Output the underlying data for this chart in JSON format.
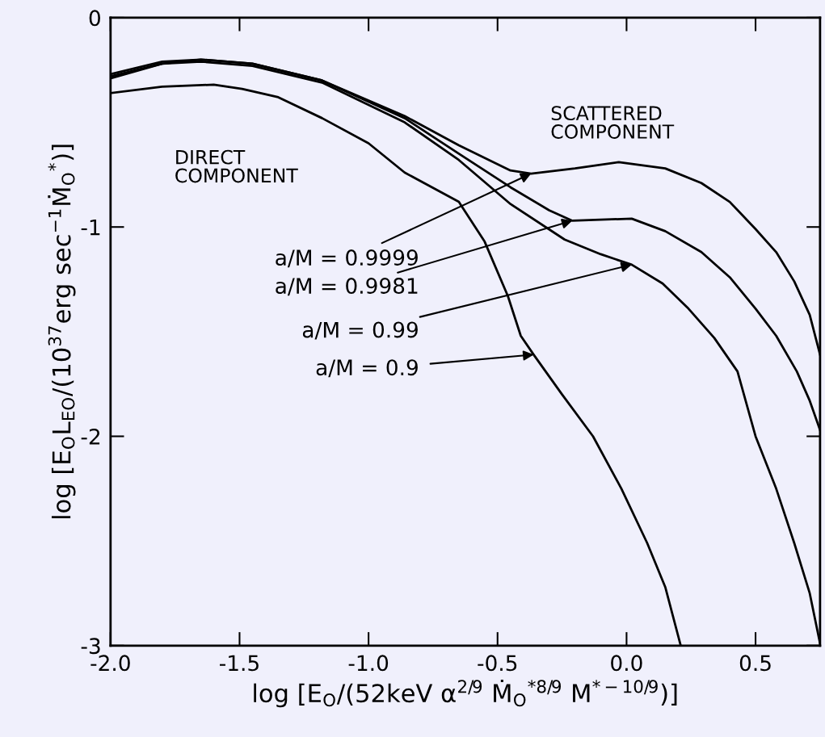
{
  "chart_data": {
    "type": "line",
    "xlabel": "log [E$_{O}$/(52keV α$^{2/9}$ Ṁ$_{O}$$^{*8/9}$ M$^{*−10/9}$)]",
    "ylabel": "log [E$_{O}$L$_{EO}$/(10$^{37}$erg sec$^{−1}$Ṁ$_{O}$$^{*}$)]",
    "xlim": [
      -2.0,
      0.75
    ],
    "ylim": [
      -3,
      0
    ],
    "xticks": [
      {
        "value": -2,
        "label": "-2.0"
      },
      -1.5,
      {
        "value": -1,
        "label": "-1.0"
      },
      -0.5,
      {
        "value": 0,
        "label": "0.0"
      },
      0.5
    ],
    "yticks": [
      0,
      -1,
      -2,
      -3
    ],
    "grid": false,
    "legend": false,
    "marker": "none",
    "line_style": "solid",
    "series": [
      {
        "color": "#000000",
        "x": [
          -2.0,
          -1.8,
          -1.65,
          -1.45,
          -1.18,
          -0.86,
          -0.65,
          -0.45,
          -0.37,
          -0.2,
          -0.03,
          0.15,
          0.29,
          0.4,
          0.5,
          0.58,
          0.65,
          0.71,
          0.75
        ],
        "values": [
          -0.27,
          -0.21,
          -0.2,
          -0.22,
          -0.3,
          -0.47,
          -0.61,
          -0.73,
          -0.745,
          -0.72,
          -0.69,
          -0.72,
          -0.79,
          -0.88,
          -1.01,
          -1.12,
          -1.26,
          -1.42,
          -1.61
        ]
      },
      {
        "color": "#000000",
        "x": [
          -2.0,
          -1.8,
          -1.65,
          -1.45,
          -1.18,
          -0.86,
          -0.65,
          -0.45,
          -0.3,
          -0.21,
          0.02,
          0.15,
          0.29,
          0.4,
          0.5,
          0.58,
          0.66,
          0.71,
          0.75
        ],
        "values": [
          -0.28,
          -0.22,
          -0.2,
          -0.22,
          -0.3,
          -0.48,
          -0.65,
          -0.81,
          -0.92,
          -0.97,
          -0.96,
          -1.02,
          -1.12,
          -1.24,
          -1.39,
          -1.52,
          -1.69,
          -1.83,
          -1.97
        ]
      },
      {
        "color": "#000000",
        "x": [
          -2.0,
          -1.8,
          -1.65,
          -1.45,
          -1.18,
          -0.86,
          -0.65,
          -0.45,
          -0.24,
          -0.1,
          0.02,
          0.14,
          0.24,
          0.34,
          0.43,
          0.5,
          0.58,
          0.65,
          0.71,
          0.75
        ],
        "values": [
          -0.29,
          -0.22,
          -0.21,
          -0.23,
          -0.31,
          -0.5,
          -0.68,
          -0.89,
          -1.06,
          -1.13,
          -1.18,
          -1.27,
          -1.39,
          -1.53,
          -1.69,
          -2.0,
          -2.25,
          -2.51,
          -2.75,
          -2.99
        ]
      },
      {
        "color": "#000000",
        "x": [
          -2.0,
          -1.8,
          -1.6,
          -1.49,
          -1.35,
          -1.18,
          -1.0,
          -0.86,
          -0.65,
          -0.55,
          -0.46,
          -0.41,
          -0.36,
          -0.25,
          -0.13,
          -0.02,
          0.08,
          0.15,
          0.21
        ],
        "values": [
          -0.36,
          -0.33,
          -0.32,
          -0.34,
          -0.38,
          -0.48,
          -0.6,
          -0.74,
          -0.88,
          -1.07,
          -1.33,
          -1.52,
          -1.61,
          -1.8,
          -2.0,
          -2.25,
          -2.51,
          -2.72,
          -3.0
        ]
      }
    ],
    "annotations": [
      {
        "text": "a/M = 0.9999",
        "x": -0.37,
        "y": -0.745
      },
      {
        "text": "a/M = 0.9981",
        "x": -0.21,
        "y": -0.97
      },
      {
        "text": "a/M = 0.99",
        "x": 0.02,
        "y": -1.18
      },
      {
        "text": "a/M = 0.9",
        "x": -0.36,
        "y": -1.61
      },
      "DIRECT\nCOMPONENT",
      "SCATTERED\nCOMPONENT"
    ]
  }
}
